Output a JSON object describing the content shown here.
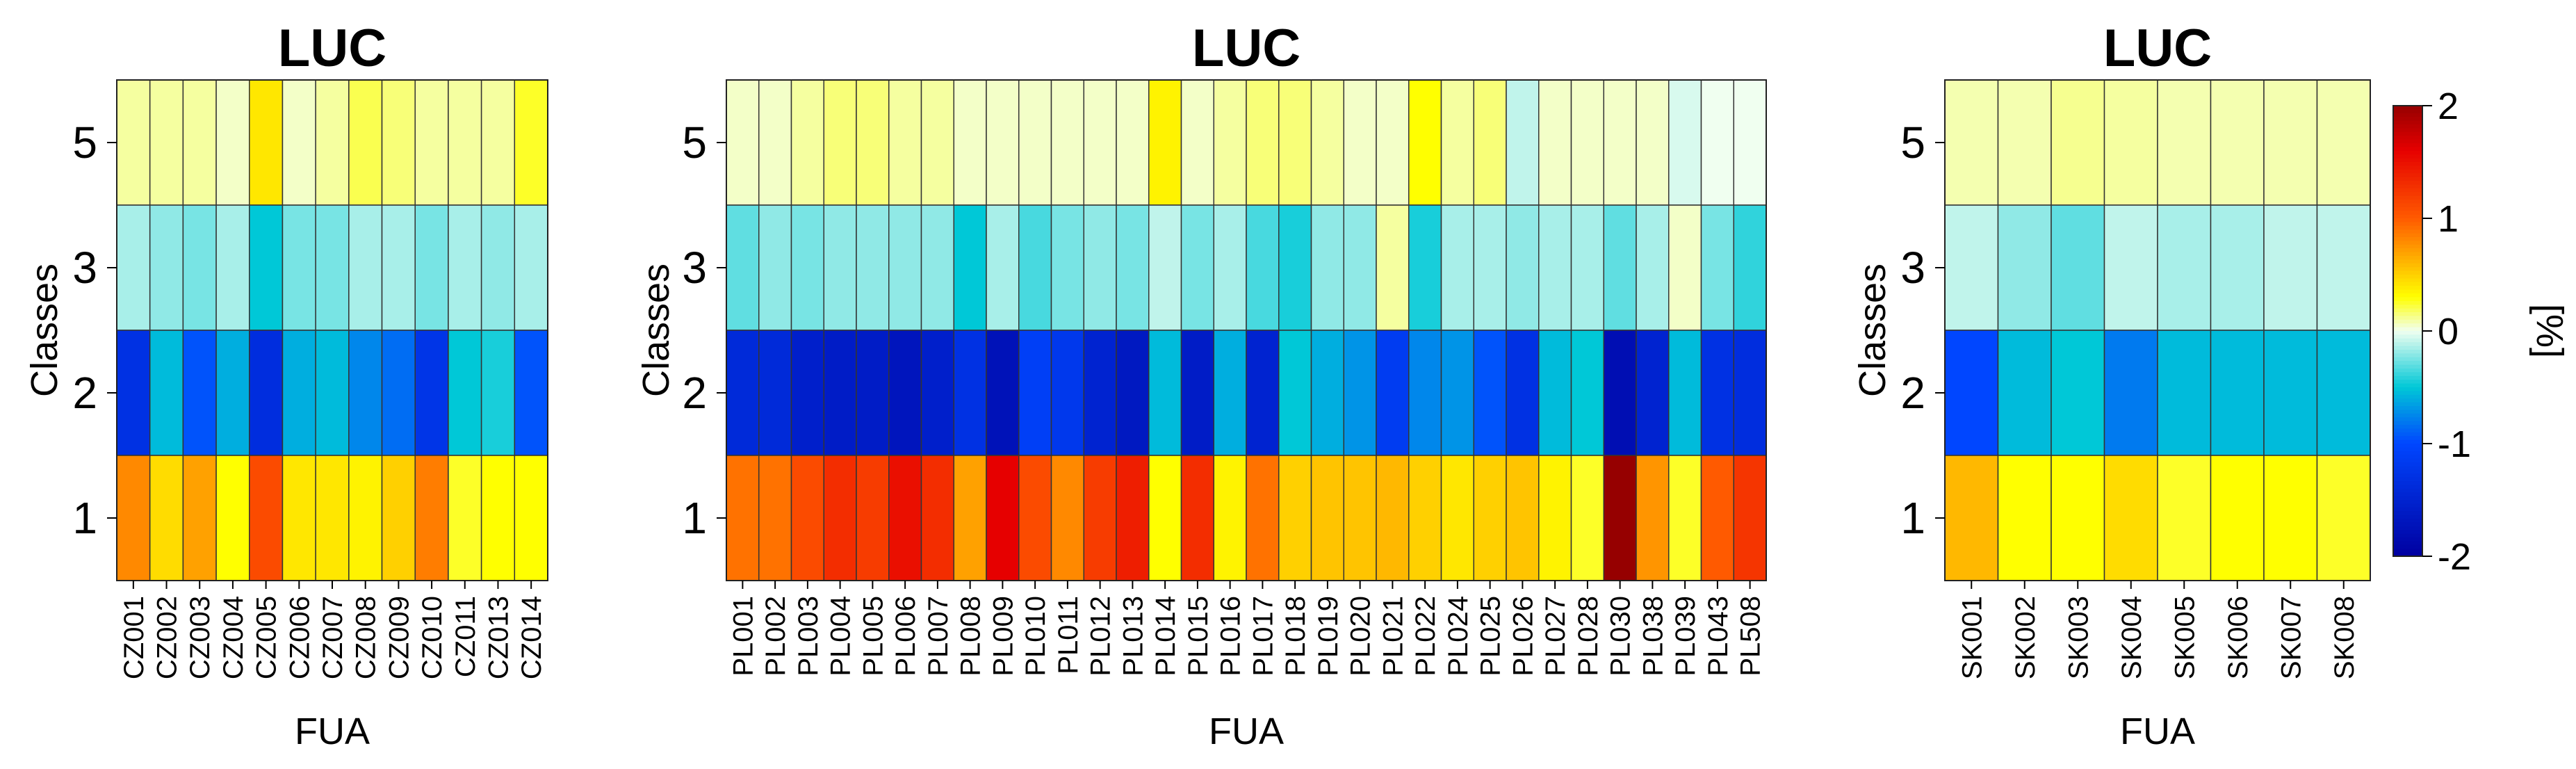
{
  "chart_data": [
    {
      "type": "heatmap",
      "title": "LUC",
      "xlabel": "FUA",
      "ylabel": "Classes",
      "classes": [
        "5",
        "3",
        "2",
        "1"
      ],
      "categories": [
        "CZ001",
        "CZ002",
        "CZ003",
        "CZ004",
        "CZ005",
        "CZ006",
        "CZ007",
        "CZ008",
        "CZ009",
        "CZ010",
        "CZ011",
        "CZ013",
        "CZ014"
      ],
      "values": [
        [
          0.1,
          0.1,
          0.1,
          0.05,
          0.4,
          0.05,
          0.1,
          0.2,
          0.15,
          0.1,
          0.1,
          0.1,
          0.25
        ],
        [
          -0.15,
          -0.2,
          -0.25,
          -0.15,
          -0.5,
          -0.25,
          -0.25,
          -0.15,
          -0.15,
          -0.25,
          -0.15,
          -0.2,
          -0.15
        ],
        [
          -1.3,
          -0.55,
          -0.95,
          -0.6,
          -1.35,
          -0.6,
          -0.55,
          -0.75,
          -0.85,
          -1.25,
          -0.5,
          -0.45,
          -0.95
        ],
        [
          0.8,
          0.45,
          0.7,
          0.3,
          1.1,
          0.4,
          0.4,
          0.35,
          0.5,
          0.85,
          0.25,
          0.3,
          0.3
        ]
      ]
    },
    {
      "type": "heatmap",
      "title": "LUC",
      "xlabel": "FUA",
      "ylabel": "Classes",
      "classes": [
        "5",
        "3",
        "2",
        "1"
      ],
      "categories": [
        "PL001",
        "PL002",
        "PL003",
        "PL004",
        "PL005",
        "PL006",
        "PL007",
        "PL008",
        "PL009",
        "PL010",
        "PL011",
        "PL012",
        "PL013",
        "PL014",
        "PL015",
        "PL016",
        "PL017",
        "PL018",
        "PL019",
        "PL020",
        "PL021",
        "PL022",
        "PL024",
        "PL025",
        "PL026",
        "PL027",
        "PL028",
        "PL030",
        "PL038",
        "PL039",
        "PL043",
        "PL508"
      ],
      "values": [
        [
          0.05,
          0.05,
          0.1,
          0.15,
          0.15,
          0.1,
          0.1,
          0.05,
          0.05,
          0.05,
          0.05,
          0.05,
          0.05,
          0.35,
          0.05,
          0.1,
          0.15,
          0.15,
          0.1,
          0.05,
          0.05,
          0.3,
          0.1,
          0.15,
          -0.1,
          0.05,
          0.05,
          0.05,
          0.05,
          -0.05,
          0.0,
          0.0
        ],
        [
          -0.3,
          -0.2,
          -0.25,
          -0.2,
          -0.2,
          -0.2,
          -0.2,
          -0.5,
          -0.15,
          -0.35,
          -0.25,
          -0.2,
          -0.25,
          -0.1,
          -0.25,
          -0.15,
          -0.35,
          -0.45,
          -0.2,
          -0.2,
          0.1,
          -0.45,
          -0.15,
          -0.15,
          -0.2,
          -0.15,
          -0.15,
          -0.3,
          -0.15,
          0.05,
          -0.25,
          -0.4
        ],
        [
          -1.4,
          -1.4,
          -1.55,
          -1.6,
          -1.6,
          -1.7,
          -1.55,
          -1.3,
          -1.75,
          -1.1,
          -1.2,
          -1.5,
          -1.65,
          -0.55,
          -1.6,
          -0.6,
          -1.5,
          -0.5,
          -0.6,
          -0.7,
          -1.15,
          -0.75,
          -0.7,
          -0.95,
          -1.3,
          -0.55,
          -0.5,
          -1.8,
          -1.5,
          -0.55,
          -1.3,
          -1.35
        ],
        [
          0.9,
          0.9,
          1.1,
          1.3,
          1.2,
          1.5,
          1.3,
          0.7,
          1.6,
          1.1,
          0.8,
          1.2,
          1.4,
          0.3,
          1.3,
          0.35,
          0.9,
          0.5,
          0.55,
          0.55,
          0.6,
          0.5,
          0.4,
          0.5,
          0.55,
          0.35,
          0.25,
          2.0,
          0.75,
          0.25,
          1.0,
          1.25
        ]
      ]
    },
    {
      "type": "heatmap",
      "title": "LUC",
      "xlabel": "FUA",
      "ylabel": "Classes",
      "classes": [
        "5",
        "3",
        "2",
        "1"
      ],
      "categories": [
        "SK001",
        "SK002",
        "SK003",
        "SK004",
        "SK005",
        "SK006",
        "SK007",
        "SK008"
      ],
      "values": [
        [
          0.08,
          0.08,
          0.12,
          0.1,
          0.08,
          0.08,
          0.08,
          0.08
        ],
        [
          -0.1,
          -0.2,
          -0.3,
          -0.1,
          -0.15,
          -0.15,
          -0.1,
          -0.1
        ],
        [
          -1.0,
          -0.55,
          -0.5,
          -0.8,
          -0.55,
          -0.55,
          -0.55,
          -0.55
        ],
        [
          0.6,
          0.3,
          0.3,
          0.45,
          0.25,
          0.3,
          0.3,
          0.25
        ]
      ]
    }
  ],
  "colorbar": {
    "label": "[%]",
    "ticks": [
      "2",
      "1",
      "0",
      "-1",
      "-2"
    ],
    "range": [
      -2,
      2
    ]
  }
}
